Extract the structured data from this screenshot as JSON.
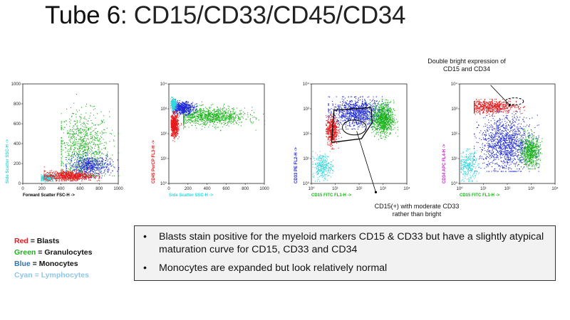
{
  "slide": {
    "title_prefix": "Tube 6:",
    "title_markers": "CD15/CD33/CD45/CD34"
  },
  "colors": {
    "blasts": "#e31a1c",
    "granulocytes": "#19b319",
    "monocytes": "#1f2ad6",
    "lymphocytes": "#33d6dd",
    "lymph_legend": "#8fc6e8",
    "legend_blue": "#2e75b6"
  },
  "chart_data": [
    {
      "type": "scatter",
      "title": "",
      "xlabel": "Forward Scatter FSC-H ->",
      "ylabel": "Side Scatter SSC-H ->",
      "xlabel_color": "#000000",
      "ylabel_color": "#33d6dd",
      "xscale": "linear",
      "yscale": "linear",
      "xlim": [
        0,
        1000
      ],
      "ylim": [
        0,
        1000
      ],
      "xticks": [
        "0",
        "200",
        "400",
        "600",
        "800",
        "1000"
      ],
      "yticks": [
        "0",
        "200",
        "400",
        "600",
        "800",
        "1000"
      ],
      "series": [
        {
          "name": "Granulocytes",
          "color": "#19b319",
          "count": 900,
          "cx": 620,
          "cy": 360,
          "sx": 140,
          "sy": 180,
          "xlim": [
            400,
            1000
          ],
          "ylim": [
            80,
            900
          ]
        },
        {
          "name": "Monocytes",
          "color": "#1f2ad6",
          "count": 550,
          "cx": 700,
          "cy": 180,
          "sx": 110,
          "sy": 50,
          "xlim": [
            450,
            1000
          ],
          "ylim": [
            60,
            320
          ]
        },
        {
          "name": "Lymphocytes",
          "color": "#33d6dd",
          "count": 300,
          "cx": 250,
          "cy": 60,
          "sx": 40,
          "sy": 18,
          "xlim": [
            190,
            340
          ],
          "ylim": [
            20,
            110
          ]
        },
        {
          "name": "Blasts",
          "color": "#e31a1c",
          "count": 750,
          "cx": 480,
          "cy": 80,
          "sx": 130,
          "sy": 25,
          "xlim": [
            220,
            800
          ],
          "ylim": [
            30,
            180
          ]
        }
      ]
    },
    {
      "type": "scatter",
      "title": "",
      "xlabel": "Side Scatter SSC-H ->",
      "ylabel": "CD45 PerCP FL3-H ->",
      "xlabel_color": "#33d6dd",
      "ylabel_color": "#e31a1c",
      "xscale": "linear",
      "yscale": "log",
      "xlim": [
        0,
        1000
      ],
      "ylim": [
        1,
        10000
      ],
      "xticks": [
        "0",
        "200",
        "400",
        "600",
        "800",
        "1000"
      ],
      "yticks": [
        "10⁰",
        "10¹",
        "10²",
        "10³",
        "10⁴"
      ],
      "series": [
        {
          "name": "Granulocytes",
          "color": "#19b319",
          "count": 1000,
          "cx": 420,
          "cy": 2.7,
          "sx": 190,
          "sy": 0.18,
          "xlim": [
            150,
            1000
          ],
          "ylim": [
            2.1,
            3.3
          ]
        },
        {
          "name": "Monocytes",
          "color": "#1f2ad6",
          "count": 600,
          "cx": 140,
          "cy": 3.05,
          "sx": 60,
          "sy": 0.12,
          "xlim": [
            40,
            320
          ],
          "ylim": [
            2.7,
            3.4
          ]
        },
        {
          "name": "Lymphocytes",
          "color": "#33d6dd",
          "count": 300,
          "cx": 45,
          "cy": 3.2,
          "sx": 15,
          "sy": 0.1,
          "xlim": [
            15,
            100
          ],
          "ylim": [
            2.9,
            3.5
          ]
        },
        {
          "name": "Blasts",
          "color": "#e31a1c",
          "count": 650,
          "cx": 55,
          "cy": 2.35,
          "sx": 20,
          "sy": 0.22,
          "xlim": [
            20,
            130
          ],
          "ylim": [
            1.7,
            2.9
          ]
        }
      ]
    },
    {
      "type": "scatter",
      "title": "",
      "xlabel": "CD15 FITC FL1-H ->",
      "ylabel": "CD33 PE FL2-H ->",
      "xlabel_color": "#19b319",
      "ylabel_color": "#1f2ad6",
      "xscale": "log",
      "yscale": "log",
      "xlim": [
        1,
        10000
      ],
      "ylim": [
        1,
        10000
      ],
      "xticks": [
        "10⁰",
        "10¹",
        "10²",
        "10³",
        "10⁴"
      ],
      "yticks": [
        "10⁰",
        "10¹",
        "10²",
        "10³",
        "10⁴"
      ],
      "series": [
        {
          "name": "Monocytes",
          "color": "#1f2ad6",
          "count": 1100,
          "cx": 1.9,
          "cy": 2.85,
          "sx": 0.55,
          "sy": 0.28,
          "xlim": [
            0.7,
            3.2
          ],
          "ylim": [
            2.2,
            3.5
          ]
        },
        {
          "name": "Granulocytes",
          "color": "#19b319",
          "count": 900,
          "cx": 3.0,
          "cy": 2.6,
          "sx": 0.22,
          "sy": 0.32,
          "xlim": [
            2.3,
            3.6
          ],
          "ylim": [
            1.6,
            3.4
          ]
        },
        {
          "name": "Lymphocytes",
          "color": "#33d6dd",
          "count": 300,
          "cx": 0.45,
          "cy": 0.7,
          "sx": 0.2,
          "sy": 0.25,
          "xlim": [
            0.05,
            0.9
          ],
          "ylim": [
            0.1,
            1.3
          ]
        },
        {
          "name": "Blasts",
          "color": "#e31a1c",
          "count": 500,
          "cx": 0.85,
          "cy": 2.15,
          "sx": 0.12,
          "sy": 0.28,
          "xlim": [
            0.6,
            1.3
          ],
          "ylim": [
            1.4,
            2.8
          ]
        }
      ],
      "overlay_paths": [
        [
          [
            0.85,
            1.65
          ],
          [
            0.95,
            2.95
          ],
          [
            2.5,
            3.05
          ],
          [
            2.55,
            2.45
          ],
          [
            2.1,
            1.8
          ],
          [
            0.85,
            1.65
          ]
        ]
      ],
      "overlay_ellipses": [
        {
          "cx": 1.8,
          "cy": 2.25,
          "rx": 0.5,
          "ry": 0.3,
          "dashed": false
        }
      ],
      "callout": {
        "from": [
          1.9,
          2.1
        ],
        "to": [
          2.7,
          -0.35
        ]
      }
    },
    {
      "type": "scatter",
      "title": "",
      "xlabel": "CD15 FITC FL1-H ->",
      "ylabel": "CD34 APC FL4-H ->",
      "xlabel_color": "#19b319",
      "ylabel_color": "#cc22cc",
      "xscale": "log",
      "yscale": "log",
      "xlim": [
        1,
        10000
      ],
      "ylim": [
        1,
        10000
      ],
      "xticks": [
        "10⁰",
        "10¹",
        "10²",
        "10³",
        "10⁴"
      ],
      "yticks": [
        "10⁰",
        "10¹",
        "10²",
        "10³",
        "10⁴"
      ],
      "series": [
        {
          "name": "Monocytes",
          "color": "#1f2ad6",
          "count": 1300,
          "cx": 1.95,
          "cy": 1.6,
          "sx": 0.55,
          "sy": 0.55,
          "xlim": [
            0.6,
            3.3
          ],
          "ylim": [
            0.5,
            2.9
          ]
        },
        {
          "name": "Granulocytes",
          "color": "#19b319",
          "count": 600,
          "cx": 2.95,
          "cy": 1.3,
          "sx": 0.2,
          "sy": 0.3,
          "xlim": [
            2.4,
            3.5
          ],
          "ylim": [
            0.6,
            2.2
          ]
        },
        {
          "name": "Lymphocytes",
          "color": "#33d6dd",
          "count": 300,
          "cx": 0.35,
          "cy": 0.7,
          "sx": 0.2,
          "sy": 0.3,
          "xlim": [
            0.05,
            0.8
          ],
          "ylim": [
            0.1,
            1.4
          ]
        },
        {
          "name": "Blasts",
          "color": "#e31a1c",
          "count": 650,
          "cx": 1.3,
          "cy": 3.1,
          "sx": 0.55,
          "sy": 0.13,
          "xlim": [
            0.6,
            2.7
          ],
          "ylim": [
            2.75,
            3.4
          ]
        }
      ],
      "overlay_ellipses": [
        {
          "cx": 2.3,
          "cy": 3.3,
          "rx": 0.38,
          "ry": 0.14,
          "dashed": true
        }
      ],
      "callout": {
        "from": [
          1.3,
          3.95
        ],
        "to": [
          2.1,
          3.15
        ]
      }
    }
  ],
  "annotations": {
    "double_bright": "Double bright expression of\nCD15 and CD34",
    "cd15_moderate": "CD15(+) with moderate CD33\nrather than bright"
  },
  "legend": [
    {
      "color_word": "Red",
      "rest": " = Blasts",
      "color": "#e31a1c"
    },
    {
      "color_word": "Green",
      "rest": " = Granulocytes",
      "color": "#19b319"
    },
    {
      "color_word": "Blue",
      "rest": " = Monocytes",
      "color": "#2e75b6"
    },
    {
      "color_word": "Cyan",
      "rest": " = Lymphocytes",
      "color": "#8fc6e8"
    }
  ],
  "summary": [
    "Blasts stain positive for the myeloid markers CD15 & CD33 but have a slightly atypical maturation curve for CD15, CD33 and CD34",
    "Monocytes are expanded but look relatively normal"
  ]
}
